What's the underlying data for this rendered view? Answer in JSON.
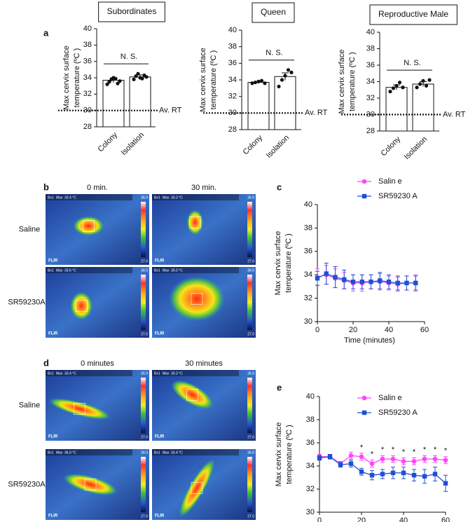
{
  "panel_letters": [
    "a",
    "b",
    "c",
    "d",
    "e"
  ],
  "chart_data": [
    {
      "type": "bar",
      "title": "Subordinates",
      "ylabel": [
        "Max cervix surface",
        "temperature (ºC )"
      ],
      "categories": [
        "Colony",
        "Isolation"
      ],
      "values": [
        33.7,
        34.1
      ],
      "errors": [
        0.3,
        0.25
      ],
      "points": [
        [
          33.2,
          33.5,
          33.8,
          34.0,
          33.9,
          33.3,
          33.6
        ],
        [
          33.8,
          34.2,
          34.5,
          34.0,
          33.9,
          34.3,
          34.1
        ]
      ],
      "ylim": [
        28,
        40
      ],
      "yticks": [
        28,
        30,
        32,
        34,
        36,
        38,
        40
      ],
      "reference_line": {
        "value": 30,
        "label": "Av. RT"
      },
      "annotation": "N. S.",
      "color": "#ffffff"
    },
    {
      "type": "bar",
      "title": "Queen",
      "ylabel": [
        "Max cervix surface",
        "temperature (ºC )"
      ],
      "categories": [
        "Colony",
        "Isolation"
      ],
      "values": [
        33.7,
        34.4
      ],
      "errors": [
        0.1,
        0.45
      ],
      "points": [
        [
          33.6,
          33.7,
          33.8,
          33.9,
          33.6
        ],
        [
          33.2,
          34.0,
          34.5,
          35.2,
          34.9
        ]
      ],
      "ylim": [
        28,
        40
      ],
      "yticks": [
        28,
        30,
        32,
        34,
        36,
        38,
        40
      ],
      "reference_line": {
        "value": 30,
        "label": "Av. RT"
      },
      "annotation": "N. S.",
      "color": "#ffffff"
    },
    {
      "type": "bar",
      "title": "Reproductive Male",
      "ylabel": [
        "Max cervix surface",
        "temperature (ºC )"
      ],
      "categories": [
        "Colony",
        "Isolation"
      ],
      "values": [
        33.3,
        33.7
      ],
      "errors": [
        0.3,
        0.3
      ],
      "points": [
        [
          32.8,
          33.2,
          33.5,
          33.9,
          33.3
        ],
        [
          33.3,
          33.7,
          34.1,
          33.5,
          34.2
        ]
      ],
      "ylim": [
        28,
        40
      ],
      "yticks": [
        28,
        30,
        32,
        34,
        36,
        38,
        40
      ],
      "reference_line": {
        "value": 30,
        "label": "Av. RT"
      },
      "annotation": "N. S.",
      "color": "#ffffff"
    },
    {
      "type": "line",
      "ylabel": [
        "Max cervix surface",
        "temperature (ºC )"
      ],
      "xlabel": "Time (minutes)",
      "x": [
        0,
        5,
        10,
        15,
        20,
        25,
        30,
        35,
        40,
        45,
        50,
        55
      ],
      "series": [
        {
          "name": "Salin e",
          "color": "#ff44ff",
          "marker": "circle",
          "values": [
            33.8,
            34.0,
            33.7,
            33.5,
            33.3,
            33.3,
            33.4,
            33.4,
            33.3,
            33.2,
            33.3,
            33.3
          ],
          "errors": [
            0.7,
            0.8,
            0.8,
            0.7,
            0.7,
            0.7,
            0.6,
            0.7,
            0.6,
            0.6,
            0.6,
            0.7
          ]
        },
        {
          "name": "SR59230 A",
          "color": "#1f4fd6",
          "marker": "square",
          "values": [
            33.7,
            34.1,
            33.8,
            33.6,
            33.4,
            33.4,
            33.4,
            33.5,
            33.4,
            33.3,
            33.3,
            33.3
          ],
          "errors": [
            0.6,
            0.9,
            0.9,
            0.8,
            0.6,
            0.6,
            0.6,
            0.7,
            0.6,
            0.6,
            0.6,
            0.6
          ]
        }
      ],
      "xlim": [
        0,
        60
      ],
      "xticks": [
        0,
        20,
        40,
        60
      ],
      "ylim": [
        30,
        40
      ],
      "yticks": [
        30,
        32,
        34,
        36,
        38,
        40
      ]
    },
    {
      "type": "line",
      "ylabel": [
        "Max cervix surface",
        "temperature (ºC )"
      ],
      "xlabel": "Time (minutes)",
      "x": [
        0,
        5,
        10,
        15,
        20,
        25,
        30,
        35,
        40,
        45,
        50,
        55,
        60
      ],
      "series": [
        {
          "name": "Salin e",
          "color": "#ff44ff",
          "marker": "circle",
          "values": [
            34.8,
            34.8,
            34.2,
            34.9,
            34.8,
            34.2,
            34.6,
            34.6,
            34.4,
            34.4,
            34.6,
            34.6,
            34.5
          ],
          "errors": [
            0.2,
            0.2,
            0.2,
            0.3,
            0.3,
            0.3,
            0.3,
            0.3,
            0.3,
            0.3,
            0.3,
            0.3,
            0.3
          ]
        },
        {
          "name": "SR59230 A",
          "color": "#1f4fd6",
          "marker": "square",
          "values": [
            34.7,
            34.8,
            34.1,
            34.2,
            33.5,
            33.2,
            33.3,
            33.4,
            33.4,
            33.2,
            33.1,
            33.3,
            32.5
          ],
          "errors": [
            0.2,
            0.2,
            0.2,
            0.3,
            0.3,
            0.4,
            0.4,
            0.5,
            0.5,
            0.5,
            0.6,
            0.6,
            0.7
          ]
        }
      ],
      "stars": {
        "x": [
          20,
          25,
          30,
          35,
          40,
          45,
          50,
          55,
          60
        ],
        "labels": [
          "*",
          "*",
          "*",
          "*",
          "*",
          "*",
          "*",
          "*",
          "*"
        ]
      },
      "xlim": [
        0,
        60
      ],
      "xticks": [
        0,
        20,
        40,
        60
      ],
      "ylim": [
        30,
        40
      ],
      "yticks": [
        30,
        32,
        34,
        36,
        38,
        40
      ]
    }
  ],
  "thermal_figures": [
    {
      "columns": [
        "0 min.",
        "30 min."
      ],
      "rows": [
        "Saline",
        "SR59230A"
      ],
      "images": [
        {
          "box": "Bx1",
          "max": "Max",
          "reading": "33.4 °C",
          "scale_top": "36.0",
          "scale_bottom": "27.0",
          "brand": "FLIR"
        },
        {
          "box": "Bx1",
          "max": "Max",
          "reading": "33.3 °C",
          "scale_top": "36.0",
          "scale_bottom": "27.0",
          "brand": "FLIR"
        },
        {
          "box": "Bx1",
          "max": "Max",
          "reading": "33.6 °C",
          "scale_top": "36.0",
          "scale_bottom": "27.0",
          "brand": "FLIR"
        },
        {
          "box": "Bx1",
          "max": "Max",
          "reading": "35.0 °C",
          "scale_top": "36.0",
          "scale_bottom": "27.0",
          "brand": "FLIR"
        }
      ]
    },
    {
      "columns": [
        "0 minutes",
        "30 minutes"
      ],
      "rows": [
        "Saline",
        "SR59230A"
      ],
      "images": [
        {
          "box": "Bx1",
          "max": "Max",
          "reading": "33.4 °C",
          "scale_top": "35.9",
          "scale_bottom": "27.0",
          "brand": "FLIR"
        },
        {
          "box": "Bx1",
          "max": "Max",
          "reading": "33.3 °C",
          "scale_top": "36.0",
          "scale_bottom": "27.0",
          "brand": "FLIR"
        },
        {
          "box": "Bx1",
          "max": "Max",
          "reading": "36.0 °C",
          "scale_top": "36.0",
          "scale_bottom": "27.0",
          "brand": "FLIR"
        },
        {
          "box": "Bx1",
          "max": "Max",
          "reading": "33.4 °C",
          "scale_top": "36.0",
          "scale_bottom": "27.0",
          "brand": "FLIR"
        }
      ]
    }
  ]
}
